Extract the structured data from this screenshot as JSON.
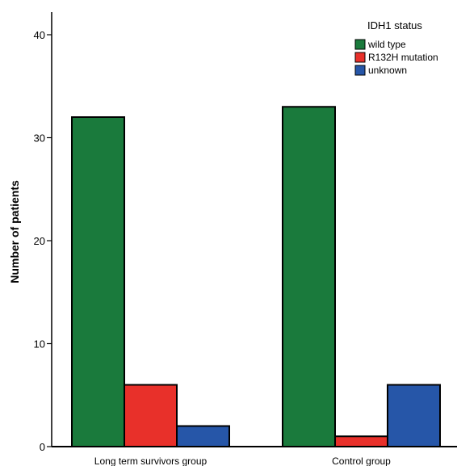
{
  "chart_data": {
    "type": "bar",
    "title": "",
    "xlabel": "",
    "ylabel": "Number of patients",
    "ylim": [
      0,
      43
    ],
    "yticks": [
      0,
      10,
      20,
      30,
      40
    ],
    "categories": [
      "Long term survivors group",
      "Control group"
    ],
    "series": [
      {
        "name": "wild type",
        "values": [
          32,
          33
        ],
        "color": "#1a7a3c"
      },
      {
        "name": "R132H mutation",
        "values": [
          6,
          1
        ],
        "color": "#e8302a"
      },
      {
        "name": "unknown",
        "values": [
          2,
          6
        ],
        "color": "#2656a8"
      }
    ],
    "legend": {
      "title": "IDH1 status",
      "position": "top-right"
    },
    "grid": false
  }
}
